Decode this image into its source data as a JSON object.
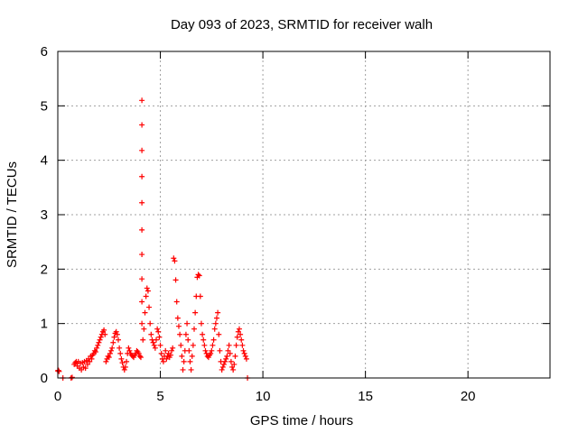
{
  "chart_data": {
    "type": "scatter",
    "title": "Day 093 of 2023, SRMTID for receiver walh",
    "xlabel": "GPS time / hours",
    "ylabel": "SRMTID / TECUs",
    "xlim": [
      0,
      24
    ],
    "ylim": [
      0,
      6
    ],
    "xticks": [
      0,
      5,
      10,
      15,
      20
    ],
    "yticks": [
      0,
      1,
      2,
      3,
      4,
      5,
      6
    ],
    "grid": true,
    "marker": "+",
    "series": [
      {
        "name": "SRMTID",
        "color": "#ff0000",
        "x": [
          0.0,
          0.03,
          0.06,
          0.25,
          0.65,
          0.7,
          0.8,
          0.85,
          0.9,
          0.95,
          1.0,
          1.05,
          1.1,
          1.15,
          1.2,
          1.25,
          1.3,
          1.35,
          1.4,
          1.45,
          1.5,
          1.55,
          1.6,
          1.65,
          1.7,
          1.75,
          1.8,
          1.85,
          1.9,
          1.95,
          2.0,
          2.05,
          2.1,
          2.15,
          2.2,
          2.25,
          2.3,
          2.35,
          2.4,
          2.45,
          2.5,
          2.55,
          2.6,
          2.65,
          2.7,
          2.75,
          2.8,
          2.85,
          2.9,
          2.95,
          3.0,
          3.05,
          3.1,
          3.15,
          3.2,
          3.25,
          3.3,
          3.35,
          3.4,
          3.45,
          3.5,
          3.55,
          3.6,
          3.65,
          3.7,
          3.75,
          3.8,
          3.85,
          3.9,
          3.95,
          4.0,
          4.05,
          4.1,
          4.1,
          4.1,
          4.1,
          4.1,
          4.1,
          4.1,
          4.1,
          4.1,
          4.1,
          4.15,
          4.2,
          4.25,
          4.3,
          4.35,
          4.4,
          4.45,
          4.5,
          4.55,
          4.6,
          4.65,
          4.7,
          4.75,
          4.8,
          4.85,
          4.9,
          4.95,
          5.0,
          5.05,
          5.1,
          5.15,
          5.2,
          5.25,
          5.3,
          5.35,
          5.4,
          5.45,
          5.5,
          5.55,
          5.6,
          5.65,
          5.7,
          5.75,
          5.8,
          5.85,
          5.9,
          5.95,
          6.0,
          6.05,
          6.1,
          6.15,
          6.2,
          6.25,
          6.3,
          6.35,
          6.4,
          6.45,
          6.5,
          6.55,
          6.6,
          6.65,
          6.7,
          6.75,
          6.8,
          6.85,
          6.9,
          6.95,
          7.0,
          7.05,
          7.1,
          7.15,
          7.2,
          7.25,
          7.3,
          7.35,
          7.4,
          7.45,
          7.5,
          7.55,
          7.6,
          7.65,
          7.7,
          7.75,
          7.8,
          7.85,
          7.9,
          7.95,
          8.0,
          8.05,
          8.1,
          8.15,
          8.2,
          8.25,
          8.3,
          8.35,
          8.4,
          8.45,
          8.5,
          8.55,
          8.6,
          8.65,
          8.7,
          8.75,
          8.8,
          8.85,
          8.9,
          8.95,
          9.0,
          9.05,
          9.1,
          9.15,
          9.2,
          9.25
        ],
        "y": [
          0.13,
          0.14,
          0.12,
          0.0,
          0.0,
          0.01,
          0.25,
          0.28,
          0.3,
          0.22,
          0.3,
          0.18,
          0.27,
          0.15,
          0.28,
          0.2,
          0.3,
          0.18,
          0.32,
          0.25,
          0.35,
          0.3,
          0.4,
          0.35,
          0.42,
          0.45,
          0.5,
          0.48,
          0.55,
          0.6,
          0.65,
          0.7,
          0.75,
          0.8,
          0.85,
          0.88,
          0.8,
          0.3,
          0.35,
          0.4,
          0.38,
          0.45,
          0.5,
          0.55,
          0.65,
          0.75,
          0.82,
          0.85,
          0.8,
          0.7,
          0.55,
          0.45,
          0.35,
          0.28,
          0.2,
          0.15,
          0.2,
          0.3,
          0.45,
          0.55,
          0.5,
          0.45,
          0.42,
          0.4,
          0.38,
          0.42,
          0.45,
          0.5,
          0.48,
          0.45,
          0.4,
          0.38,
          5.1,
          4.65,
          4.18,
          3.7,
          3.22,
          2.72,
          2.27,
          1.82,
          1.4,
          1.0,
          0.7,
          0.9,
          1.2,
          1.5,
          1.65,
          1.6,
          1.3,
          1.0,
          0.8,
          0.7,
          0.65,
          0.6,
          0.55,
          0.7,
          0.9,
          0.85,
          0.75,
          0.6,
          0.45,
          0.35,
          0.3,
          0.4,
          0.5,
          0.35,
          0.4,
          0.45,
          0.38,
          0.42,
          0.5,
          0.55,
          2.2,
          2.15,
          1.8,
          1.4,
          1.1,
          0.95,
          0.8,
          0.6,
          0.4,
          0.15,
          0.3,
          0.5,
          0.8,
          1.0,
          0.7,
          0.5,
          0.3,
          0.15,
          0.4,
          0.6,
          0.9,
          1.2,
          1.5,
          1.85,
          1.9,
          1.88,
          1.5,
          1.0,
          0.8,
          0.7,
          0.6,
          0.5,
          0.45,
          0.4,
          0.38,
          0.42,
          0.45,
          0.5,
          0.6,
          0.7,
          0.9,
          1.0,
          1.1,
          1.2,
          0.8,
          0.5,
          0.3,
          0.15,
          0.2,
          0.25,
          0.3,
          0.35,
          0.4,
          0.5,
          0.6,
          0.45,
          0.3,
          0.2,
          0.15,
          0.25,
          0.4,
          0.6,
          0.75,
          0.85,
          0.9,
          0.8,
          0.7,
          0.6,
          0.5,
          0.45,
          0.4,
          0.35,
          0.0
        ]
      }
    ]
  }
}
